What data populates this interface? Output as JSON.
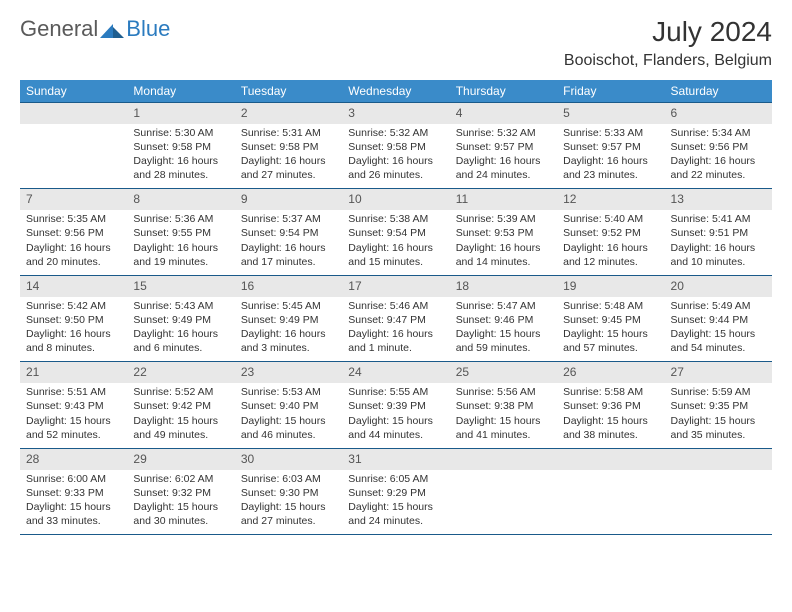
{
  "brand": {
    "text1": "General",
    "text2": "Blue",
    "color_gray": "#5a5a5a",
    "color_blue": "#2b7bbf"
  },
  "title": "July 2024",
  "location": "Booischot, Flanders, Belgium",
  "header_bg": "#3a8bc9",
  "header_fg": "#ffffff",
  "daynum_bg": "#e8e8e8",
  "daynum_fg": "#555555",
  "rule_color": "#1a5a8a",
  "text_color": "#333333",
  "font_family": "Arial, Helvetica, sans-serif",
  "month_title_fontsize": 28,
  "location_fontsize": 16,
  "header_fontsize": 12,
  "daynum_fontsize": 12,
  "body_fontsize": 10.5,
  "headers": [
    "Sunday",
    "Monday",
    "Tuesday",
    "Wednesday",
    "Thursday",
    "Friday",
    "Saturday"
  ],
  "weeks": [
    [
      null,
      {
        "n": "1",
        "sr": "Sunrise: 5:30 AM",
        "ss": "Sunset: 9:58 PM",
        "dl": "Daylight: 16 hours and 28 minutes."
      },
      {
        "n": "2",
        "sr": "Sunrise: 5:31 AM",
        "ss": "Sunset: 9:58 PM",
        "dl": "Daylight: 16 hours and 27 minutes."
      },
      {
        "n": "3",
        "sr": "Sunrise: 5:32 AM",
        "ss": "Sunset: 9:58 PM",
        "dl": "Daylight: 16 hours and 26 minutes."
      },
      {
        "n": "4",
        "sr": "Sunrise: 5:32 AM",
        "ss": "Sunset: 9:57 PM",
        "dl": "Daylight: 16 hours and 24 minutes."
      },
      {
        "n": "5",
        "sr": "Sunrise: 5:33 AM",
        "ss": "Sunset: 9:57 PM",
        "dl": "Daylight: 16 hours and 23 minutes."
      },
      {
        "n": "6",
        "sr": "Sunrise: 5:34 AM",
        "ss": "Sunset: 9:56 PM",
        "dl": "Daylight: 16 hours and 22 minutes."
      }
    ],
    [
      {
        "n": "7",
        "sr": "Sunrise: 5:35 AM",
        "ss": "Sunset: 9:56 PM",
        "dl": "Daylight: 16 hours and 20 minutes."
      },
      {
        "n": "8",
        "sr": "Sunrise: 5:36 AM",
        "ss": "Sunset: 9:55 PM",
        "dl": "Daylight: 16 hours and 19 minutes."
      },
      {
        "n": "9",
        "sr": "Sunrise: 5:37 AM",
        "ss": "Sunset: 9:54 PM",
        "dl": "Daylight: 16 hours and 17 minutes."
      },
      {
        "n": "10",
        "sr": "Sunrise: 5:38 AM",
        "ss": "Sunset: 9:54 PM",
        "dl": "Daylight: 16 hours and 15 minutes."
      },
      {
        "n": "11",
        "sr": "Sunrise: 5:39 AM",
        "ss": "Sunset: 9:53 PM",
        "dl": "Daylight: 16 hours and 14 minutes."
      },
      {
        "n": "12",
        "sr": "Sunrise: 5:40 AM",
        "ss": "Sunset: 9:52 PM",
        "dl": "Daylight: 16 hours and 12 minutes."
      },
      {
        "n": "13",
        "sr": "Sunrise: 5:41 AM",
        "ss": "Sunset: 9:51 PM",
        "dl": "Daylight: 16 hours and 10 minutes."
      }
    ],
    [
      {
        "n": "14",
        "sr": "Sunrise: 5:42 AM",
        "ss": "Sunset: 9:50 PM",
        "dl": "Daylight: 16 hours and 8 minutes."
      },
      {
        "n": "15",
        "sr": "Sunrise: 5:43 AM",
        "ss": "Sunset: 9:49 PM",
        "dl": "Daylight: 16 hours and 6 minutes."
      },
      {
        "n": "16",
        "sr": "Sunrise: 5:45 AM",
        "ss": "Sunset: 9:49 PM",
        "dl": "Daylight: 16 hours and 3 minutes."
      },
      {
        "n": "17",
        "sr": "Sunrise: 5:46 AM",
        "ss": "Sunset: 9:47 PM",
        "dl": "Daylight: 16 hours and 1 minute."
      },
      {
        "n": "18",
        "sr": "Sunrise: 5:47 AM",
        "ss": "Sunset: 9:46 PM",
        "dl": "Daylight: 15 hours and 59 minutes."
      },
      {
        "n": "19",
        "sr": "Sunrise: 5:48 AM",
        "ss": "Sunset: 9:45 PM",
        "dl": "Daylight: 15 hours and 57 minutes."
      },
      {
        "n": "20",
        "sr": "Sunrise: 5:49 AM",
        "ss": "Sunset: 9:44 PM",
        "dl": "Daylight: 15 hours and 54 minutes."
      }
    ],
    [
      {
        "n": "21",
        "sr": "Sunrise: 5:51 AM",
        "ss": "Sunset: 9:43 PM",
        "dl": "Daylight: 15 hours and 52 minutes."
      },
      {
        "n": "22",
        "sr": "Sunrise: 5:52 AM",
        "ss": "Sunset: 9:42 PM",
        "dl": "Daylight: 15 hours and 49 minutes."
      },
      {
        "n": "23",
        "sr": "Sunrise: 5:53 AM",
        "ss": "Sunset: 9:40 PM",
        "dl": "Daylight: 15 hours and 46 minutes."
      },
      {
        "n": "24",
        "sr": "Sunrise: 5:55 AM",
        "ss": "Sunset: 9:39 PM",
        "dl": "Daylight: 15 hours and 44 minutes."
      },
      {
        "n": "25",
        "sr": "Sunrise: 5:56 AM",
        "ss": "Sunset: 9:38 PM",
        "dl": "Daylight: 15 hours and 41 minutes."
      },
      {
        "n": "26",
        "sr": "Sunrise: 5:58 AM",
        "ss": "Sunset: 9:36 PM",
        "dl": "Daylight: 15 hours and 38 minutes."
      },
      {
        "n": "27",
        "sr": "Sunrise: 5:59 AM",
        "ss": "Sunset: 9:35 PM",
        "dl": "Daylight: 15 hours and 35 minutes."
      }
    ],
    [
      {
        "n": "28",
        "sr": "Sunrise: 6:00 AM",
        "ss": "Sunset: 9:33 PM",
        "dl": "Daylight: 15 hours and 33 minutes."
      },
      {
        "n": "29",
        "sr": "Sunrise: 6:02 AM",
        "ss": "Sunset: 9:32 PM",
        "dl": "Daylight: 15 hours and 30 minutes."
      },
      {
        "n": "30",
        "sr": "Sunrise: 6:03 AM",
        "ss": "Sunset: 9:30 PM",
        "dl": "Daylight: 15 hours and 27 minutes."
      },
      {
        "n": "31",
        "sr": "Sunrise: 6:05 AM",
        "ss": "Sunset: 9:29 PM",
        "dl": "Daylight: 15 hours and 24 minutes."
      },
      null,
      null,
      null
    ]
  ]
}
